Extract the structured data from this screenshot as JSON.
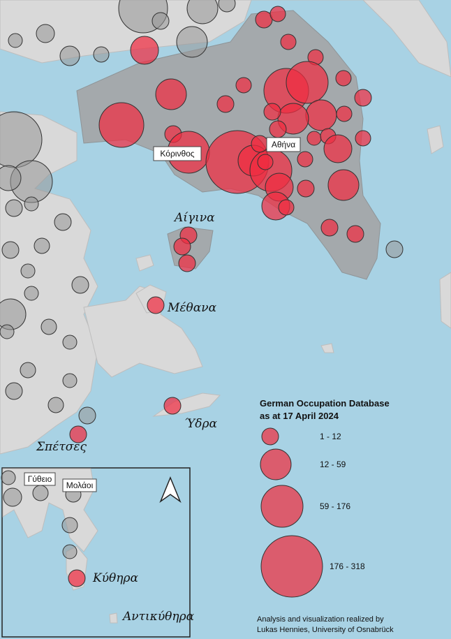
{
  "places": {
    "korinthos": "Κόρινθος",
    "athina": "Αθήνα",
    "aigina": "Αίγινα",
    "methana": "Μέθανα",
    "ydra": "Ύδρα",
    "spetses": "Σπέτσες",
    "gytheio": "Γύθειο",
    "molaoi": "Μολάοι",
    "kythira": "Κύθηρα",
    "antikythira": "Αντικύθηρα"
  },
  "legend": {
    "title_lines": [
      "German Occupation Database",
      "as at 17 April 2024"
    ],
    "classes": [
      "1 - 12",
      "12 - 59",
      "59 - 176",
      "176 - 318"
    ]
  },
  "credits": [
    "Analysis and visualization realized by",
    "Lukas Hennies, University of Osnabrück"
  ]
}
